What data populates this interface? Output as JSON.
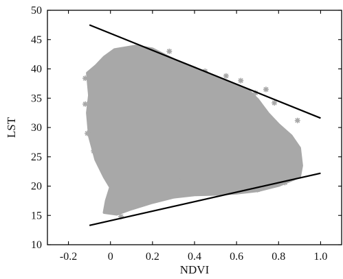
{
  "chart_data": {
    "type": "scatter",
    "xlabel": "NDVI",
    "ylabel": "LST",
    "xlim": [
      -0.3,
      1.1
    ],
    "ylim": [
      10,
      50
    ],
    "xticks": [
      -0.2,
      0,
      0.2,
      0.4,
      0.6,
      0.8,
      1.0
    ],
    "xtick_labels": [
      "-0.2",
      "0",
      "0.2",
      "0.4",
      "0.6",
      "0.8",
      "1.0"
    ],
    "yticks": [
      10,
      15,
      20,
      25,
      30,
      35,
      40,
      45,
      50
    ],
    "ytick_labels": [
      "10",
      "15",
      "20",
      "25",
      "30",
      "35",
      "40",
      "45",
      "50"
    ],
    "grid": false,
    "point_color": "#a8a8a8",
    "line_color": "#000000",
    "point_cloud_outline": [
      [
        0.02,
        43.3
      ],
      [
        0.12,
        43.9
      ],
      [
        0.2,
        43.4
      ],
      [
        0.3,
        41.6
      ],
      [
        0.4,
        40.2
      ],
      [
        0.5,
        38.6
      ],
      [
        0.6,
        37.2
      ],
      [
        0.66,
        36.2
      ],
      [
        0.7,
        34.8
      ],
      [
        0.75,
        32.4
      ],
      [
        0.8,
        30.5
      ],
      [
        0.86,
        28.6
      ],
      [
        0.9,
        26.5
      ],
      [
        0.91,
        23.5
      ],
      [
        0.9,
        21.6
      ],
      [
        0.8,
        20.1
      ],
      [
        0.7,
        19.2
      ],
      [
        0.6,
        18.8
      ],
      [
        0.5,
        18.6
      ],
      [
        0.4,
        18.5
      ],
      [
        0.3,
        18.1
      ],
      [
        0.2,
        17.2
      ],
      [
        0.1,
        16.1
      ],
      [
        0.03,
        15.2
      ],
      [
        -0.03,
        15.5
      ],
      [
        -0.02,
        17.5
      ],
      [
        0.0,
        19.8
      ],
      [
        -0.03,
        21.6
      ],
      [
        -0.07,
        24.5
      ],
      [
        -0.1,
        28.5
      ],
      [
        -0.11,
        32.5
      ],
      [
        -0.1,
        35.5
      ],
      [
        -0.11,
        39.3
      ],
      [
        -0.07,
        40.5
      ],
      [
        -0.03,
        42.0
      ]
    ],
    "scattered_points": [
      [
        0.74,
        36.5
      ],
      [
        0.78,
        34.2
      ],
      [
        0.89,
        31.2
      ],
      [
        0.62,
        38.0
      ],
      [
        0.55,
        38.8
      ],
      [
        -0.12,
        38.4
      ],
      [
        -0.12,
        34.0
      ],
      [
        -0.11,
        29.0
      ],
      [
        -0.08,
        26.0
      ],
      [
        0.25,
        20.6
      ],
      [
        0.34,
        21.0
      ],
      [
        0.45,
        21.2
      ],
      [
        0.55,
        19.9
      ],
      [
        0.12,
        20.8
      ],
      [
        0.7,
        19.4
      ],
      [
        0.05,
        14.8
      ],
      [
        0.83,
        20.6
      ],
      [
        0.28,
        43.0
      ],
      [
        0.45,
        39.6
      ],
      [
        0.69,
        35.9
      ]
    ],
    "wet_edge_label": "",
    "dry_edge": {
      "x": [
        -0.1,
        1.0
      ],
      "y": [
        47.5,
        31.6
      ]
    },
    "wet_edge": {
      "x": [
        -0.1,
        1.0
      ],
      "y": [
        13.3,
        22.2
      ]
    }
  }
}
